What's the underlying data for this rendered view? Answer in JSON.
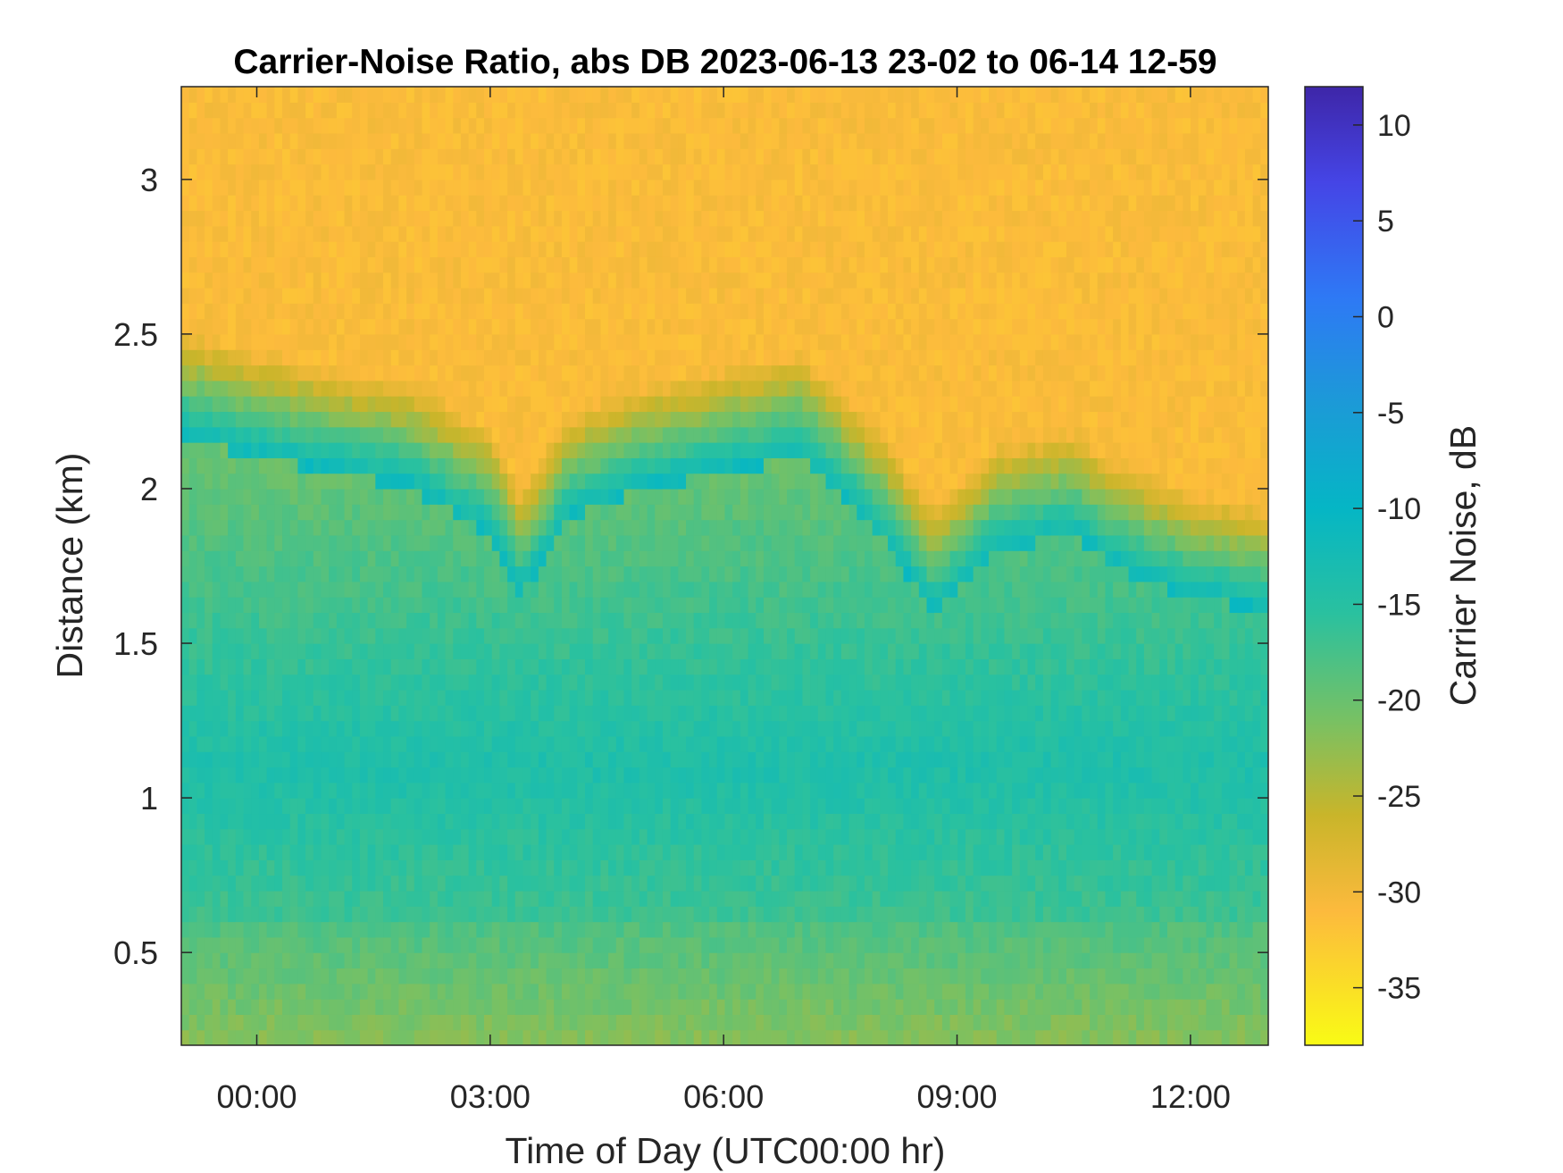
{
  "chart_data": {
    "type": "heatmap",
    "title": "Carrier-Noise Ratio, abs DB 2023-06-13 23-02 to 06-14 12-59",
    "xlabel": "Time of Day (UTC00:00 hr)",
    "ylabel": "Distance (km)",
    "xlim_hours": [
      -0.97,
      13.0
    ],
    "ylim_km": [
      0.2,
      3.3
    ],
    "x_ticks": [
      {
        "value": 0,
        "label": "00:00"
      },
      {
        "value": 3,
        "label": "03:00"
      },
      {
        "value": 6,
        "label": "06:00"
      },
      {
        "value": 9,
        "label": "09:00"
      },
      {
        "value": 12,
        "label": "12:00"
      }
    ],
    "y_ticks": [
      {
        "value": 0.5,
        "label": "0.5"
      },
      {
        "value": 1,
        "label": "1"
      },
      {
        "value": 1.5,
        "label": "1.5"
      },
      {
        "value": 2,
        "label": "2"
      },
      {
        "value": 2.5,
        "label": "2.5"
      },
      {
        "value": 3,
        "label": "3"
      }
    ],
    "colorbar": {
      "label": "Carrier Noise, dB",
      "range": [
        -38,
        12
      ],
      "reversed": true,
      "colormap": "parula",
      "ticks": [
        {
          "value": 10,
          "label": "10"
        },
        {
          "value": 5,
          "label": "5"
        },
        {
          "value": 0,
          "label": "0"
        },
        {
          "value": -5,
          "label": "-5"
        },
        {
          "value": -10,
          "label": "-10"
        },
        {
          "value": -15,
          "label": "-15"
        },
        {
          "value": -20,
          "label": "-20"
        },
        {
          "value": -25,
          "label": "-25"
        },
        {
          "value": -30,
          "label": "-30"
        },
        {
          "value": -35,
          "label": "-35"
        }
      ]
    },
    "field_description": {
      "boundary_height_km": [
        {
          "t": -0.97,
          "h": 2.17
        },
        {
          "t": 0,
          "h": 2.1
        },
        {
          "t": 1,
          "h": 2.05
        },
        {
          "t": 2,
          "h": 2.0
        },
        {
          "t": 3,
          "h": 1.85
        },
        {
          "t": 3.4,
          "h": 1.65
        },
        {
          "t": 4,
          "h": 1.9
        },
        {
          "t": 5,
          "h": 2.0
        },
        {
          "t": 6,
          "h": 2.05
        },
        {
          "t": 7,
          "h": 2.1
        },
        {
          "t": 8,
          "h": 1.85
        },
        {
          "t": 8.7,
          "h": 1.6
        },
        {
          "t": 9.5,
          "h": 1.8
        },
        {
          "t": 10.5,
          "h": 1.85
        },
        {
          "t": 11,
          "h": 1.75
        },
        {
          "t": 12,
          "h": 1.65
        },
        {
          "t": 13,
          "h": 1.6
        }
      ],
      "near_surface_db": -22,
      "mid_layer_db": -14,
      "mid_layer_km": 1.1,
      "above_boundary_db": -31
    }
  }
}
